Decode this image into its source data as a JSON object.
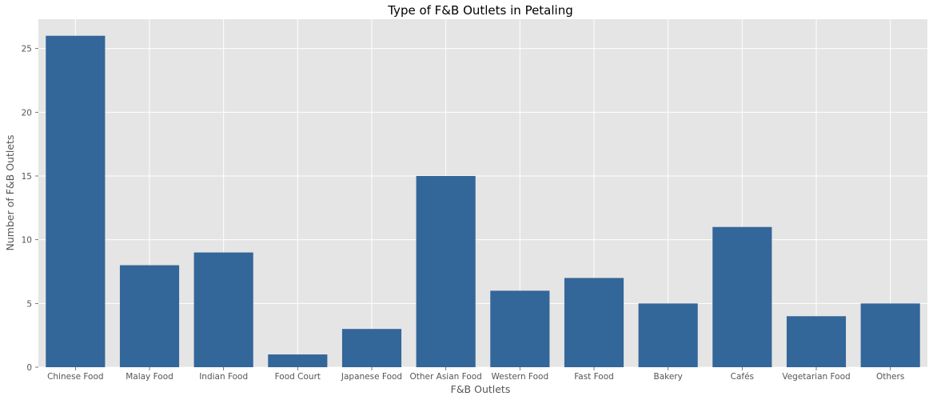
{
  "chart_data": {
    "type": "bar",
    "title": "Type of F&B Outlets in Petaling",
    "xlabel": "F&B Outlets",
    "ylabel": "Number of F&B Outlets",
    "categories": [
      "Chinese Food",
      "Malay Food",
      "Indian Food",
      "Food Court",
      "Japanese Food",
      "Other Asian Food",
      "Western Food",
      "Fast Food",
      "Bakery",
      "Cafés",
      "Vegetarian Food",
      "Others"
    ],
    "values": [
      26,
      8,
      9,
      1,
      3,
      15,
      6,
      7,
      5,
      11,
      4,
      5
    ],
    "ylim": [
      0,
      27.3
    ],
    "yticks": [
      0,
      5,
      10,
      15,
      20,
      25
    ],
    "grid": true,
    "bar_color": "#336699",
    "background_color": "#e5e5e5",
    "grid_color": "#ffffff"
  }
}
